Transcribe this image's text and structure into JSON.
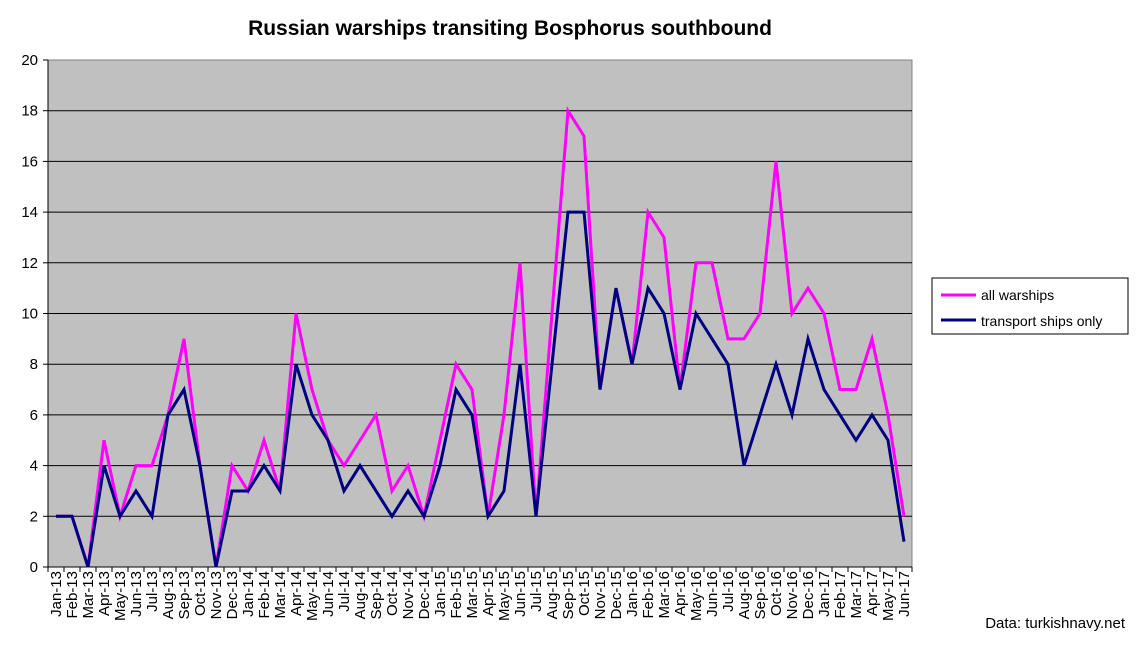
{
  "chart_data": {
    "type": "line",
    "title": "Russian warships transiting Bosphorus southbound",
    "xlabel": "",
    "ylabel": "",
    "ylim": [
      0,
      20
    ],
    "yticks": [
      0,
      2,
      4,
      6,
      8,
      10,
      12,
      14,
      16,
      18,
      20
    ],
    "grid": true,
    "legend_position": "right",
    "plot_background": "#c0c0c0",
    "categories": [
      "Jan-13",
      "Feb-13",
      "Mar-13",
      "Apr-13",
      "May-13",
      "Jun-13",
      "Jul-13",
      "Aug-13",
      "Sep-13",
      "Oct-13",
      "Nov-13",
      "Dec-13",
      "Jan-14",
      "Feb-14",
      "Mar-14",
      "Apr-14",
      "May-14",
      "Jun-14",
      "Jul-14",
      "Aug-14",
      "Sep-14",
      "Oct-14",
      "Nov-14",
      "Dec-14",
      "Jan-15",
      "Feb-15",
      "Mar-15",
      "Apr-15",
      "May-15",
      "Jun-15",
      "Jul-15",
      "Aug-15",
      "Sep-15",
      "Oct-15",
      "Nov-15",
      "Dec-15",
      "Jan-16",
      "Feb-16",
      "Mar-16",
      "Apr-16",
      "May-16",
      "Jun-16",
      "Jul-16",
      "Aug-16",
      "Sep-16",
      "Oct-16",
      "Nov-16",
      "Dec-16",
      "Jan-17",
      "Feb-17",
      "Mar-17",
      "Apr-17",
      "May-17",
      "Jun-17"
    ],
    "series": [
      {
        "name": "all warships",
        "color": "#ff00ff",
        "values": [
          2,
          2,
          0,
          5,
          2,
          4,
          4,
          6,
          9,
          4,
          0,
          4,
          3,
          5,
          3,
          10,
          7,
          5,
          4,
          5,
          6,
          3,
          4,
          2,
          5,
          8,
          7,
          2,
          6,
          12,
          2,
          10,
          18,
          17,
          7,
          11,
          8,
          14,
          13,
          7,
          12,
          12,
          9,
          9,
          10,
          16,
          10,
          11,
          10,
          7,
          7,
          9,
          6,
          2
        ]
      },
      {
        "name": "transport ships only",
        "color": "#000080",
        "values": [
          2,
          2,
          0,
          4,
          2,
          3,
          2,
          6,
          7,
          4,
          0,
          3,
          3,
          4,
          3,
          8,
          6,
          5,
          3,
          4,
          3,
          2,
          3,
          2,
          4,
          7,
          6,
          2,
          3,
          8,
          2,
          8,
          14,
          14,
          7,
          11,
          8,
          11,
          10,
          7,
          10,
          9,
          8,
          4,
          6,
          8,
          6,
          9,
          7,
          6,
          5,
          6,
          5,
          1
        ]
      }
    ],
    "source_note": "Data: turkishnavy.net"
  }
}
